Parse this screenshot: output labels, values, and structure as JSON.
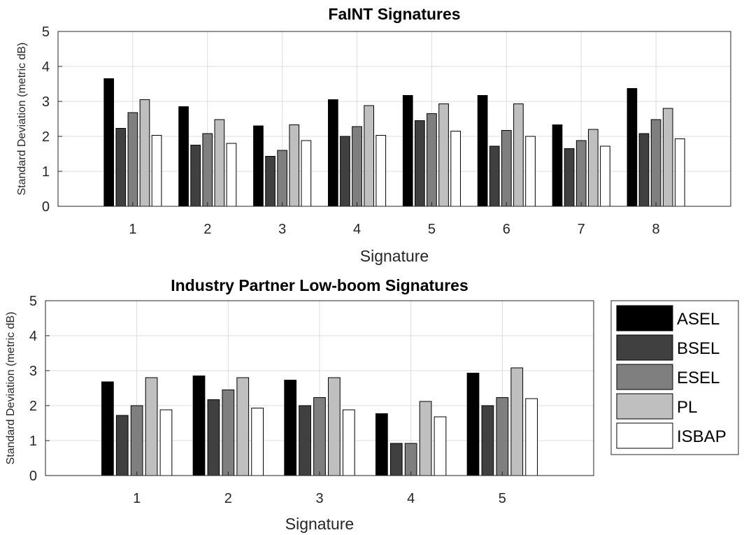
{
  "chart_data": [
    {
      "type": "bar",
      "title": "FaINT Signatures",
      "xlabel": "Signature",
      "ylabel": "Standard Deviation (metric dB)",
      "ylim": [
        0,
        5
      ],
      "yticks": [
        "0",
        "1",
        "2",
        "3",
        "4",
        "5"
      ],
      "grid": true,
      "categories": [
        "1",
        "2",
        "3",
        "4",
        "5",
        "6",
        "7",
        "8"
      ],
      "series": [
        {
          "name": "ASEL",
          "color": "#000000",
          "values": [
            3.65,
            2.85,
            2.3,
            3.05,
            3.17,
            3.17,
            2.33,
            3.37
          ]
        },
        {
          "name": "BSEL",
          "color": "#404040",
          "values": [
            2.23,
            1.75,
            1.43,
            2.0,
            2.45,
            1.72,
            1.65,
            2.08
          ]
        },
        {
          "name": "ESEL",
          "color": "#7f7f7f",
          "values": [
            2.68,
            2.08,
            1.6,
            2.28,
            2.65,
            2.17,
            1.88,
            2.48
          ]
        },
        {
          "name": "PL",
          "color": "#bfbfbf",
          "values": [
            3.05,
            2.48,
            2.33,
            2.88,
            2.93,
            2.93,
            2.2,
            2.8
          ]
        },
        {
          "name": "ISBAP",
          "color": "#ffffff",
          "values": [
            2.03,
            1.8,
            1.88,
            2.03,
            2.15,
            2.0,
            1.72,
            1.93
          ]
        }
      ]
    },
    {
      "type": "bar",
      "title": "Industry Partner Low-boom Signatures",
      "xlabel": "Signature",
      "ylabel": "Standard Deviation (metric dB)",
      "ylim": [
        0,
        5
      ],
      "yticks": [
        "0",
        "1",
        "2",
        "3",
        "4",
        "5"
      ],
      "grid": true,
      "legend_position": "right",
      "categories": [
        "1",
        "2",
        "3",
        "4",
        "5"
      ],
      "series": [
        {
          "name": "ASEL",
          "color": "#000000",
          "values": [
            2.68,
            2.85,
            2.73,
            1.77,
            2.93
          ]
        },
        {
          "name": "BSEL",
          "color": "#404040",
          "values": [
            1.72,
            2.17,
            2.0,
            0.92,
            2.0
          ]
        },
        {
          "name": "ESEL",
          "color": "#7f7f7f",
          "values": [
            2.0,
            2.45,
            2.23,
            0.92,
            2.23
          ]
        },
        {
          "name": "PL",
          "color": "#bfbfbf",
          "values": [
            2.8,
            2.8,
            2.8,
            2.12,
            3.08
          ]
        },
        {
          "name": "ISBAP",
          "color": "#ffffff",
          "values": [
            1.88,
            1.93,
            1.88,
            1.68,
            2.2
          ]
        }
      ]
    }
  ]
}
